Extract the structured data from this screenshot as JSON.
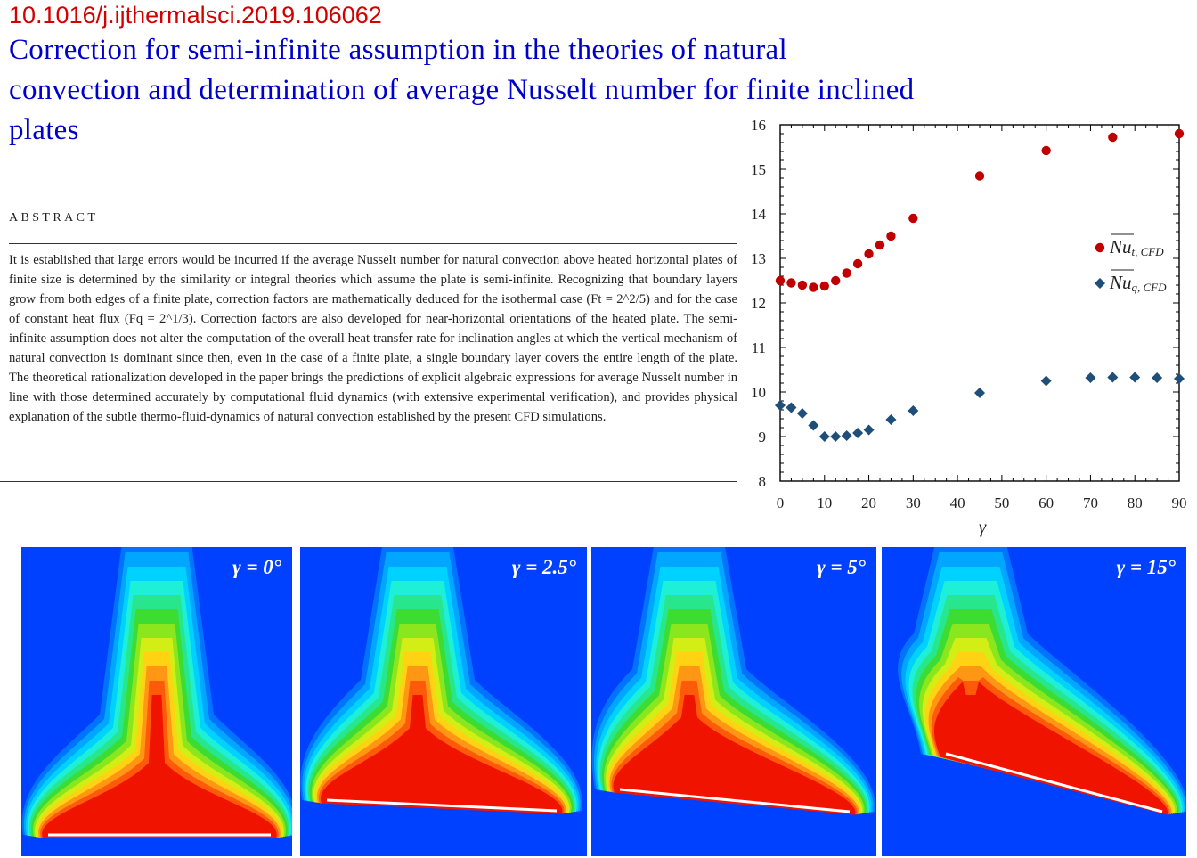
{
  "doi": "10.1016/j.ijthermalsci.2019.106062",
  "title": "Correction for semi-infinite assumption in the theories of natural convection and determination of average Nusselt number for finite inclined plates",
  "abstract": {
    "heading": "ABSTRACT",
    "text": "It is established that large errors would be incurred if the average Nusselt number for natural convection above heated horizontal plates of finite size is determined by the similarity or integral theories which assume the plate is semi-infinite. Recognizing that boundary layers grow from both edges of a finite plate, correction factors are mathematically deduced for the isothermal case (Ft = 2^2/5) and for the case of constant heat flux (Fq = 2^1/3). Correction factors are also developed for near-horizontal orientations of the heated plate. The semi-infinite assumption does not alter the computation of the overall heat transfer rate for inclination angles at which the vertical mechanism of natural convection is dominant since then, even in the case of a finite plate, a single boundary layer covers the entire length of the plate. The theoretical rationalization developed in the paper brings the predictions of explicit algebraic expressions for average Nusselt number in line with those determined accurately by computational fluid dynamics (with extensive experimental verification), and provides physical explanation of the subtle thermo-fluid-dynamics of natural convection established by the present CFD simulations."
  },
  "chart_data": {
    "type": "scatter",
    "xlabel": "γ",
    "ylabel": "",
    "xlim": [
      0,
      90
    ],
    "ylim": [
      8,
      16
    ],
    "xticks": [
      "0",
      "10",
      "20",
      "30",
      "40",
      "50",
      "60",
      "70",
      "80",
      "90"
    ],
    "yticks": [
      "8",
      "9",
      "10",
      "11",
      "12",
      "13",
      "14",
      "15",
      "16"
    ],
    "legend_position": "right",
    "series": [
      {
        "name": "Nu t, CFD",
        "marker": "circle",
        "color": "#c00000",
        "x": [
          0,
          2.5,
          5,
          7.5,
          10,
          12.5,
          15,
          17.5,
          20,
          22.5,
          25,
          30,
          45,
          60,
          75,
          90
        ],
        "y": [
          12.5,
          12.45,
          12.4,
          12.35,
          12.38,
          12.5,
          12.67,
          12.88,
          13.1,
          13.3,
          13.5,
          13.9,
          14.85,
          15.42,
          15.72,
          15.8
        ]
      },
      {
        "name": "Nu q, CFD",
        "marker": "diamond",
        "color": "#1f4e79",
        "x": [
          0,
          2.5,
          5,
          7.5,
          10,
          12.5,
          15,
          17.5,
          20,
          25,
          30,
          45,
          60,
          70,
          75,
          80,
          85,
          90
        ],
        "y": [
          9.7,
          9.65,
          9.52,
          9.25,
          9.0,
          9.0,
          9.02,
          9.08,
          9.15,
          9.38,
          9.58,
          9.98,
          10.25,
          10.32,
          10.33,
          10.33,
          10.32,
          10.3
        ]
      }
    ]
  },
  "panels": [
    {
      "label": "γ = 0°",
      "angle_deg": 0
    },
    {
      "label": "γ = 2.5°",
      "angle_deg": 2.5
    },
    {
      "label": "γ = 5°",
      "angle_deg": 5
    },
    {
      "label": "γ = 15°",
      "angle_deg": 15
    }
  ]
}
